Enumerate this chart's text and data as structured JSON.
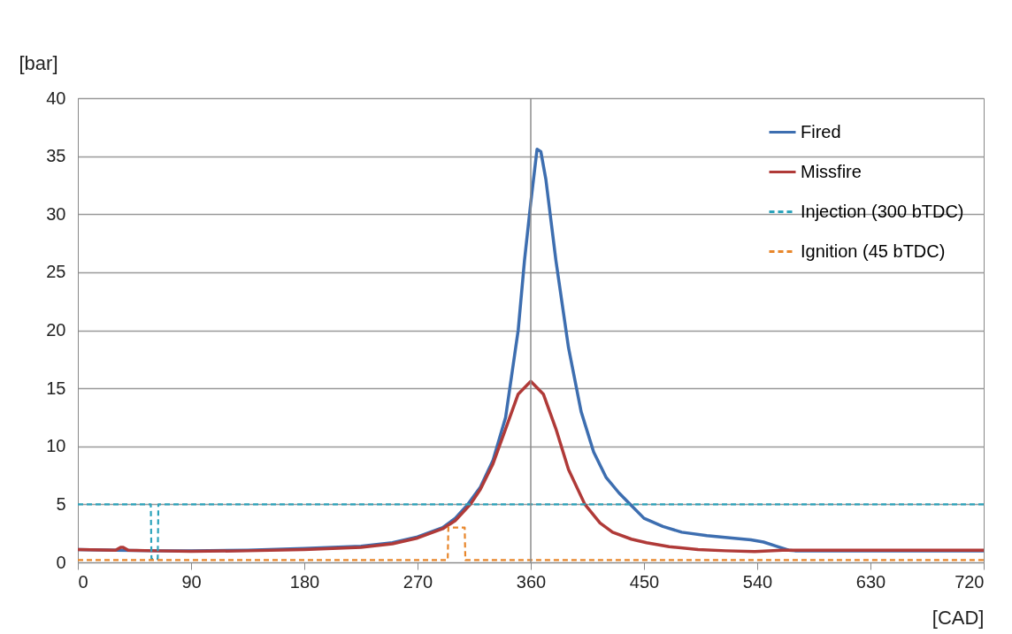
{
  "chart_data": {
    "type": "line",
    "xlabel": "[CAD]",
    "ylabel": "[bar]",
    "xlim": [
      0,
      720
    ],
    "xticks": [
      0,
      90,
      180,
      270,
      360,
      450,
      540,
      630,
      720
    ],
    "ylim": [
      0,
      40
    ],
    "yticks": [
      0,
      5,
      10,
      15,
      20,
      25,
      30,
      35,
      40
    ],
    "grid": "y",
    "legend": "top right",
    "ref_lines": [
      {
        "axis": "x",
        "value": 360,
        "color": "#8c8c8c"
      }
    ],
    "series": [
      {
        "name": "Fired",
        "color": "#3d6eb0",
        "line_style": "solid",
        "x": [
          0,
          30,
          60,
          90,
          135,
          180,
          225,
          250,
          270,
          290,
          300,
          310,
          320,
          330,
          340,
          350,
          355,
          360,
          365,
          368,
          372,
          380,
          390,
          400,
          410,
          420,
          430,
          440,
          450,
          465,
          480,
          500,
          520,
          535,
          545,
          555,
          565,
          570,
          600,
          650,
          720
        ],
        "values": [
          1.1,
          1.05,
          1.0,
          1.0,
          1.05,
          1.2,
          1.4,
          1.7,
          2.2,
          3.0,
          3.8,
          5.0,
          6.5,
          8.8,
          12.5,
          20,
          26,
          31,
          35.6,
          35.4,
          33,
          26,
          18.5,
          13,
          9.5,
          7.3,
          6.0,
          4.9,
          3.8,
          3.1,
          2.6,
          2.3,
          2.1,
          1.95,
          1.75,
          1.4,
          1.05,
          1.0,
          1.0,
          1.0,
          1.0
        ]
      },
      {
        "name": "Missfire",
        "color": "#b03a38",
        "line_style": "solid",
        "x": [
          0,
          30,
          34,
          36,
          40,
          60,
          90,
          135,
          180,
          225,
          250,
          270,
          290,
          300,
          312,
          320,
          330,
          340,
          350,
          360,
          370,
          380,
          390,
          403,
          415,
          425,
          440,
          452,
          470,
          493,
          515,
          538,
          560,
          600,
          650,
          720
        ],
        "values": [
          1.1,
          1.05,
          1.3,
          1.3,
          1.05,
          1.0,
          0.95,
          1.0,
          1.1,
          1.3,
          1.6,
          2.1,
          2.9,
          3.6,
          5.0,
          6.3,
          8.5,
          11.5,
          14.5,
          15.6,
          14.5,
          11.5,
          8.0,
          5.0,
          3.4,
          2.6,
          2.0,
          1.7,
          1.35,
          1.1,
          1.0,
          0.93,
          1.05,
          1.05,
          1.05,
          1.05
        ]
      },
      {
        "name": "Injection (300 bTDC)",
        "color": "#2ba3bb",
        "line_style": "dashed",
        "x": [
          0,
          58,
          58.5,
          63.5,
          64,
          720
        ],
        "values": [
          5,
          5,
          0.3,
          0.3,
          5,
          5
        ]
      },
      {
        "name": "Ignition (45 bTDC)",
        "color": "#e8862a",
        "line_style": "dashed",
        "x": [
          0,
          294,
          294.5,
          307.5,
          308,
          720
        ],
        "values": [
          0.2,
          0.2,
          3,
          3,
          0.2,
          0.2
        ]
      }
    ]
  }
}
